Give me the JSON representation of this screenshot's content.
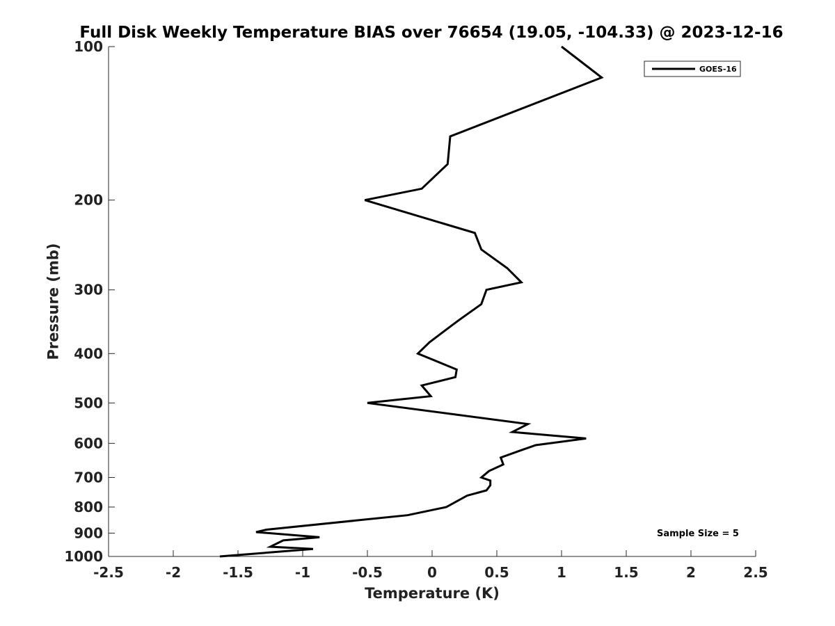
{
  "chart_data": {
    "type": "line",
    "title": "Full Disk Weekly Temperature BIAS over 76654 (19.05, -104.33) @ 2023-12-16",
    "xlabel": "Temperature (K)",
    "ylabel": "Pressure (mb)",
    "xlim": [
      -2.5,
      2.5
    ],
    "ylim": [
      100,
      1000
    ],
    "y_scale": "log",
    "y_reversed": true,
    "grid": false,
    "legend_position": "top-right",
    "x_ticks": [
      "-2.5",
      "-2",
      "-1.5",
      "-1",
      "-0.5",
      "0",
      "0.5",
      "1",
      "1.5",
      "2",
      "2.5"
    ],
    "y_ticks": [
      "100",
      "200",
      "300",
      "400",
      "500",
      "600",
      "700",
      "800",
      "900",
      "1000"
    ],
    "series": [
      {
        "name": "GOES-16",
        "color": "#000000",
        "x": [
          1.0,
          1.31,
          0.14,
          0.12,
          -0.08,
          -0.52,
          0.33,
          0.38,
          0.58,
          0.69,
          0.42,
          0.38,
          0.2,
          -0.02,
          -0.11,
          0.19,
          0.18,
          -0.08,
          -0.01,
          -0.5,
          0.74,
          0.62,
          1.19,
          0.8,
          0.68,
          0.53,
          0.55,
          0.44,
          0.38,
          0.45,
          0.45,
          0.42,
          0.27,
          0.11,
          -0.19,
          -1.28,
          -1.36,
          -0.87,
          -1.15,
          -1.25,
          -0.92,
          -1.64
        ],
        "y": [
          100,
          115,
          150,
          170,
          190,
          200,
          232,
          250,
          272,
          290,
          300,
          320,
          345,
          380,
          400,
          430,
          445,
          462,
          485,
          500,
          550,
          570,
          587,
          605,
          620,
          640,
          660,
          680,
          700,
          710,
          725,
          742,
          760,
          800,
          830,
          886,
          896,
          917,
          930,
          957,
          967,
          1000
        ]
      }
    ],
    "annotations": [
      "Sample Size = 5"
    ]
  }
}
